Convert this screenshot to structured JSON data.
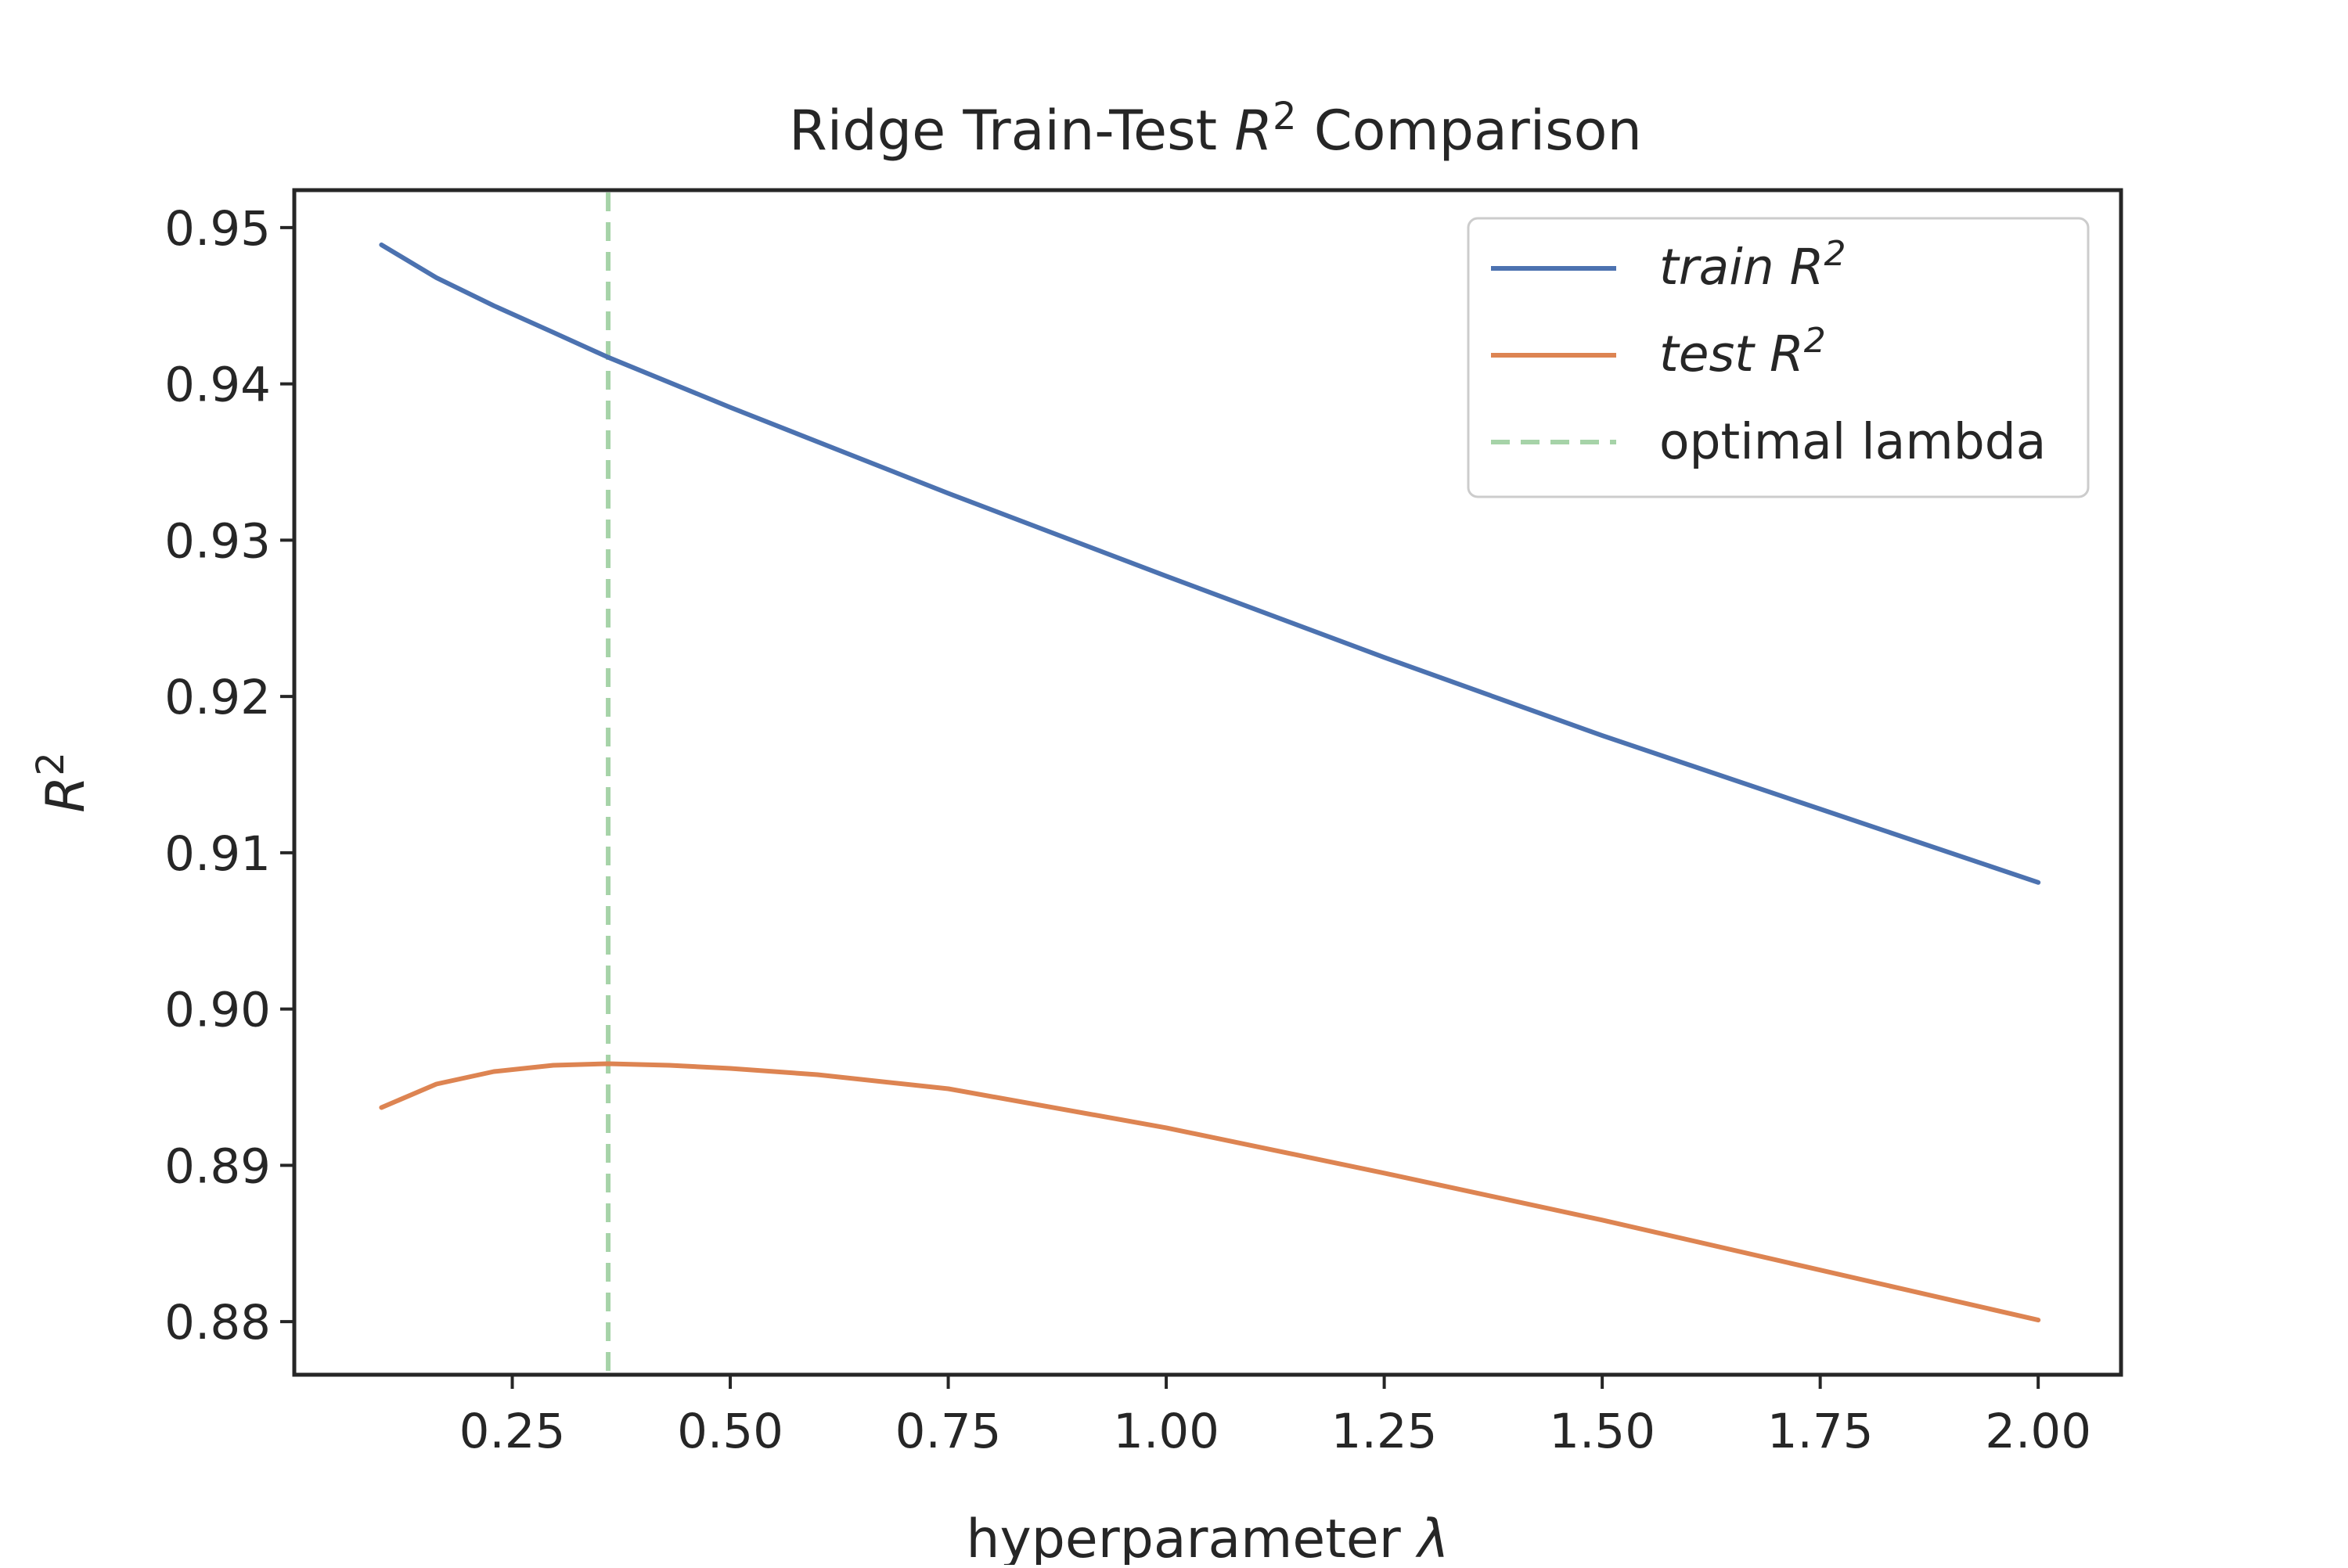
{
  "chart_data": {
    "type": "line",
    "title": {
      "prefix": "Ridge Train-Test ",
      "symbol": "R",
      "sup": "2",
      "suffix": " Comparison"
    },
    "xlabel": {
      "text": "hyperparameter ",
      "symbol": "λ"
    },
    "ylabel": {
      "symbol": "R",
      "sup": "2"
    },
    "xlim": [
      0.0,
      2.095
    ],
    "ylim": [
      0.8766,
      0.9524
    ],
    "x_ticks": [
      0.25,
      0.5,
      0.75,
      1.0,
      1.25,
      1.5,
      1.75,
      2.0
    ],
    "x_tick_labels": [
      "0.25",
      "0.50",
      "0.75",
      "1.00",
      "1.25",
      "1.50",
      "1.75",
      "2.00"
    ],
    "y_ticks": [
      0.88,
      0.89,
      0.9,
      0.91,
      0.92,
      0.93,
      0.94,
      0.95
    ],
    "y_tick_labels": [
      "0.88",
      "0.89",
      "0.90",
      "0.91",
      "0.92",
      "0.93",
      "0.94",
      "0.95"
    ],
    "grid": false,
    "legend_position": "top-right",
    "series": [
      {
        "name": "train",
        "legend": {
          "text": "train ",
          "symbol": "R",
          "sup": "2"
        },
        "color": "#4c72b0",
        "x": [
          0.1,
          0.163,
          0.229,
          0.297,
          0.36,
          0.5,
          0.75,
          1.0,
          1.25,
          1.5,
          1.75,
          2.0
        ],
        "y": [
          0.9489,
          0.9468,
          0.945,
          0.9433,
          0.9417,
          0.9385,
          0.933,
          0.9277,
          0.9225,
          0.9175,
          0.9128,
          0.9081
        ]
      },
      {
        "name": "test",
        "legend": {
          "text": "test ",
          "symbol": "R",
          "sup": "2"
        },
        "color": "#dd8452",
        "x": [
          0.1,
          0.163,
          0.229,
          0.297,
          0.36,
          0.43,
          0.5,
          0.6,
          0.75,
          1.0,
          1.25,
          1.5,
          1.75,
          2.0
        ],
        "y": [
          0.8937,
          0.8952,
          0.896,
          0.8964,
          0.8965,
          0.8964,
          0.8962,
          0.8958,
          0.8949,
          0.8924,
          0.8895,
          0.8865,
          0.8833,
          0.8801
        ]
      }
    ],
    "vlines": [
      {
        "name": "optimal lambda",
        "label": "optimal lambda",
        "x": 0.36,
        "color": "#a6d3a8",
        "style": "dashed"
      }
    ]
  }
}
